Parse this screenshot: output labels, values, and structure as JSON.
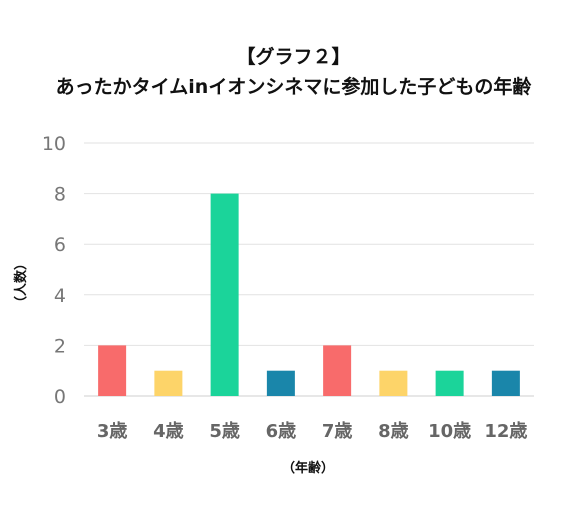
{
  "chart_data": {
    "type": "bar",
    "title_line1": "【グラフ２】",
    "title_line2": "あったかタイムinイオンシネマに参加した子どもの年齢",
    "xlabel": "（年齢）",
    "ylabel": "（人数）",
    "ylim": [
      0,
      10
    ],
    "yticks": [
      "0",
      "2",
      "4",
      "6",
      "8",
      "10"
    ],
    "grid": true,
    "categories": [
      "3歳",
      "4歳",
      "5歳",
      "6歳",
      "7歳",
      "8歳",
      "10歳",
      "12歳"
    ],
    "values": [
      2,
      1,
      8,
      1,
      2,
      1,
      1,
      1
    ],
    "colors": [
      "#f86b6b",
      "#fdd469",
      "#1bd49a",
      "#1a86aa",
      "#f86b6b",
      "#fdd469",
      "#1bd49a",
      "#1a86aa"
    ]
  }
}
